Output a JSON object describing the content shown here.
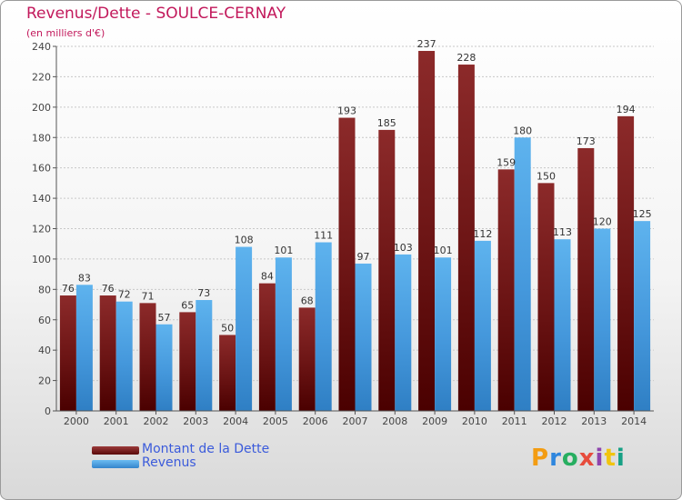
{
  "chart_data": {
    "type": "bar",
    "title": "Revenus/Dette - SOULCE-CERNAY",
    "subtitle": "(en milliers d'€)",
    "categories": [
      "2000",
      "2001",
      "2002",
      "2003",
      "2004",
      "2005",
      "2006",
      "2007",
      "2008",
      "2009",
      "2010",
      "2011",
      "2012",
      "2013",
      "2014"
    ],
    "series": [
      {
        "name": "Montant de la Dette",
        "color": "#7a1f1f",
        "values": [
          76,
          76,
          71,
          65,
          50,
          84,
          68,
          193,
          185,
          237,
          228,
          159,
          150,
          173,
          194
        ]
      },
      {
        "name": "Revenus",
        "color": "#4a9fe0",
        "values": [
          83,
          72,
          57,
          73,
          108,
          101,
          111,
          97,
          103,
          101,
          112,
          180,
          113,
          120,
          125
        ]
      }
    ],
    "ylim": [
      0,
      240
    ],
    "yticks": [
      0,
      20,
      40,
      60,
      80,
      100,
      120,
      140,
      160,
      180,
      200,
      220,
      240
    ],
    "grid": true,
    "legend_position": "bottom-left"
  },
  "logo": {
    "letters": [
      {
        "ch": "P",
        "color": "#f39c12"
      },
      {
        "ch": "r",
        "color": "#2e86de"
      },
      {
        "ch": "o",
        "color": "#27ae60"
      },
      {
        "ch": "x",
        "color": "#e74c3c"
      },
      {
        "ch": "i",
        "color": "#8e44ad"
      },
      {
        "ch": "t",
        "color": "#f1c40f"
      },
      {
        "ch": "i",
        "color": "#16a085"
      }
    ]
  }
}
